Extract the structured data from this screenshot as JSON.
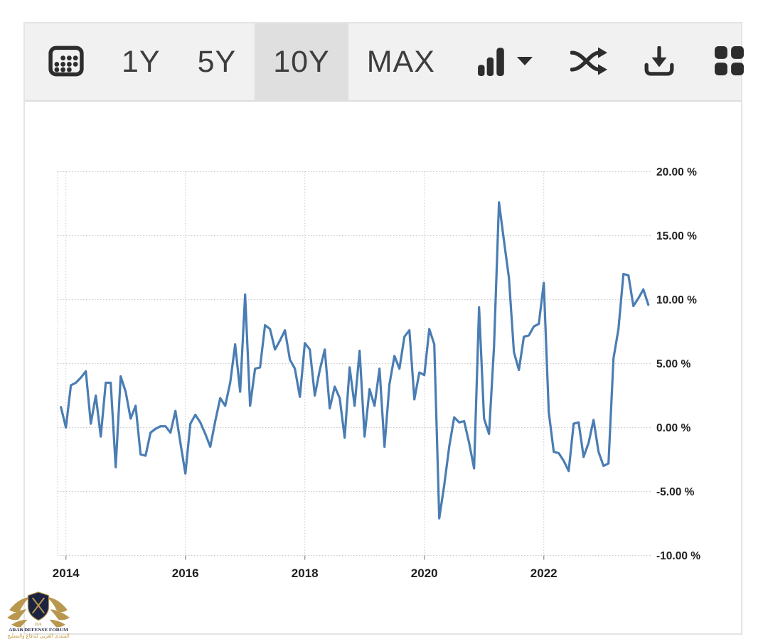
{
  "toolbar": {
    "icons": {
      "calendar": "calendar-icon",
      "chart_type": "bar-chart-icon",
      "caret": "caret-down-icon",
      "shuffle": "shuffle-icon",
      "download": "download-icon",
      "grid": "grid-icon"
    },
    "ranges": [
      {
        "label": "1Y",
        "active": false
      },
      {
        "label": "5Y",
        "active": false
      },
      {
        "label": "10Y",
        "active": true
      },
      {
        "label": "MAX",
        "active": false
      }
    ],
    "active_background": "#dfdfdf"
  },
  "watermark": {
    "monogram": "DA",
    "line1": "ARAB DEFENSE FORUM",
    "line2": "المنتدى العربي للدفاع والتسليح",
    "shield_color": "#1c2340",
    "gold_color": "#b9974e"
  },
  "chart_data": {
    "type": "line",
    "title": "",
    "unit": "%",
    "frequency": "monthly",
    "start": "2013-12",
    "end": "2023-10",
    "line_color": "#4a7db3",
    "grid": "dotted",
    "y_axis_position": "right",
    "ylim": [
      -10,
      20
    ],
    "y_ticks": [
      {
        "value": 20,
        "label": "20.00 %"
      },
      {
        "value": 15,
        "label": "15.00 %"
      },
      {
        "value": 10,
        "label": "10.00 %"
      },
      {
        "value": 5,
        "label": "5.00 %"
      },
      {
        "value": 0,
        "label": "0.00 %"
      },
      {
        "value": -5,
        "label": "-5.00 %"
      },
      {
        "value": -10,
        "label": "-10.00 %"
      }
    ],
    "x_ticks": [
      {
        "year": 2014,
        "label": "2014"
      },
      {
        "year": 2016,
        "label": "2016"
      },
      {
        "year": 2018,
        "label": "2018"
      },
      {
        "year": 2020,
        "label": "2020"
      },
      {
        "year": 2022,
        "label": "2022"
      }
    ],
    "values": [
      1.6,
      0.0,
      3.3,
      3.5,
      3.9,
      4.4,
      0.3,
      2.5,
      -0.7,
      3.5,
      3.5,
      -3.1,
      4.0,
      2.8,
      0.7,
      1.7,
      -2.1,
      -2.2,
      -0.4,
      -0.1,
      0.1,
      0.1,
      -0.4,
      1.3,
      -1.2,
      -3.6,
      0.3,
      1.0,
      0.4,
      -0.5,
      -1.5,
      0.5,
      2.3,
      1.7,
      3.5,
      6.5,
      2.8,
      10.4,
      1.7,
      4.6,
      4.7,
      8.0,
      7.7,
      6.1,
      6.8,
      7.6,
      5.3,
      4.6,
      2.4,
      6.6,
      6.1,
      2.5,
      4.5,
      6.1,
      1.5,
      3.2,
      2.3,
      -0.8,
      4.7,
      1.7,
      6.0,
      -0.7,
      3.0,
      1.7,
      4.6,
      -1.5,
      3.4,
      5.6,
      4.6,
      7.1,
      7.6,
      2.2,
      4.3,
      4.1,
      7.7,
      6.5,
      -7.1,
      -4.5,
      -1.5,
      0.8,
      0.4,
      0.5,
      -1.2,
      -3.2,
      9.4,
      0.7,
      -0.5,
      6.3,
      17.6,
      14.6,
      11.7,
      5.9,
      4.5,
      7.1,
      7.2,
      7.9,
      8.1,
      11.3,
      1.2,
      -1.9,
      -2.0,
      -2.6,
      -3.4,
      0.3,
      0.4,
      -2.3,
      -1.2,
      0.6,
      -1.9,
      -3.0,
      -2.8,
      5.4,
      7.7,
      12.0,
      11.9,
      9.5,
      10.1,
      10.8,
      9.6
    ]
  }
}
